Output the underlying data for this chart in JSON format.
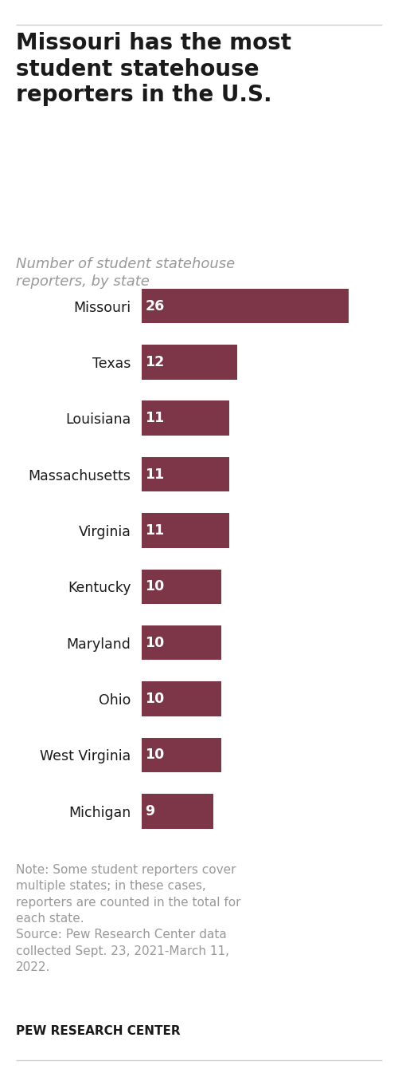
{
  "title": "Missouri has the most\nstudent statehouse\nreporters in the U.S.",
  "subtitle": "Number of student statehouse\nreporters, by state",
  "states": [
    "Missouri",
    "Texas",
    "Louisiana",
    "Massachusetts",
    "Virginia",
    "Kentucky",
    "Maryland",
    "Ohio",
    "West Virginia",
    "Michigan"
  ],
  "values": [
    26,
    12,
    11,
    11,
    11,
    10,
    10,
    10,
    10,
    9
  ],
  "bar_color": "#7d3648",
  "text_color_inside": "#ffffff",
  "title_color": "#1a1a1a",
  "subtitle_color": "#999999",
  "note_color": "#999999",
  "note_text_1": "Note: Some student reporters cover\nmultiple states; in these cases,\nreporters are counted in the total for\neach state.",
  "note_text_2": "Source: Pew Research Center data\ncollected Sept. 23, 2021-March 11,\n2022.",
  "footer_text": "PEW RESEARCH CENTER",
  "background_color": "#ffffff",
  "title_fontsize": 20,
  "subtitle_fontsize": 13,
  "label_fontsize": 12.5,
  "value_fontsize": 12.5,
  "note_fontsize": 11,
  "footer_fontsize": 11
}
